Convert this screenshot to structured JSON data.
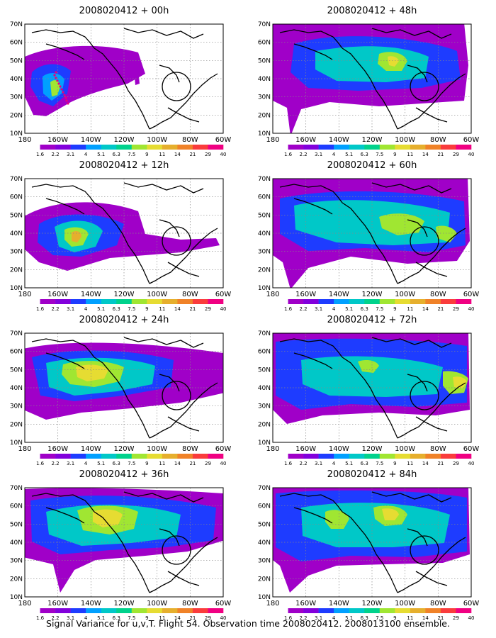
{
  "figure": {
    "caption": "Signal Variance for u,v,T. Flight 54. Observation time 2008020412. 2008013100 ensemble."
  },
  "map": {
    "lat_ticks": [
      "10N",
      "20N",
      "30N",
      "40N",
      "50N",
      "60N",
      "70N"
    ],
    "lon_ticks": [
      "180",
      "160W",
      "140W",
      "120W",
      "100W",
      "80W",
      "60W"
    ],
    "colorbar": {
      "labels": [
        "1.6",
        "2.2",
        "3.1",
        "4",
        "5.1",
        "6.3",
        "7.5",
        "9",
        "11",
        "14",
        "21",
        "29",
        "40"
      ],
      "colors": [
        "#ffffff",
        "#a000c8",
        "#8200dc",
        "#1e3cff",
        "#00a0ff",
        "#00c8c8",
        "#00d28c",
        "#a0e632",
        "#e6dc32",
        "#e6af2d",
        "#f08228",
        "#fa3c3c",
        "#f00082"
      ]
    }
  },
  "panels": [
    {
      "title": "2008020412 + 00h"
    },
    {
      "title": "2008020412 + 48h"
    },
    {
      "title": "2008020412 + 12h"
    },
    {
      "title": "2008020412 + 60h"
    },
    {
      "title": "2008020412 + 24h"
    },
    {
      "title": "2008020412 + 72h"
    },
    {
      "title": "2008020412 + 36h"
    },
    {
      "title": "2008020412 + 84h"
    }
  ]
}
